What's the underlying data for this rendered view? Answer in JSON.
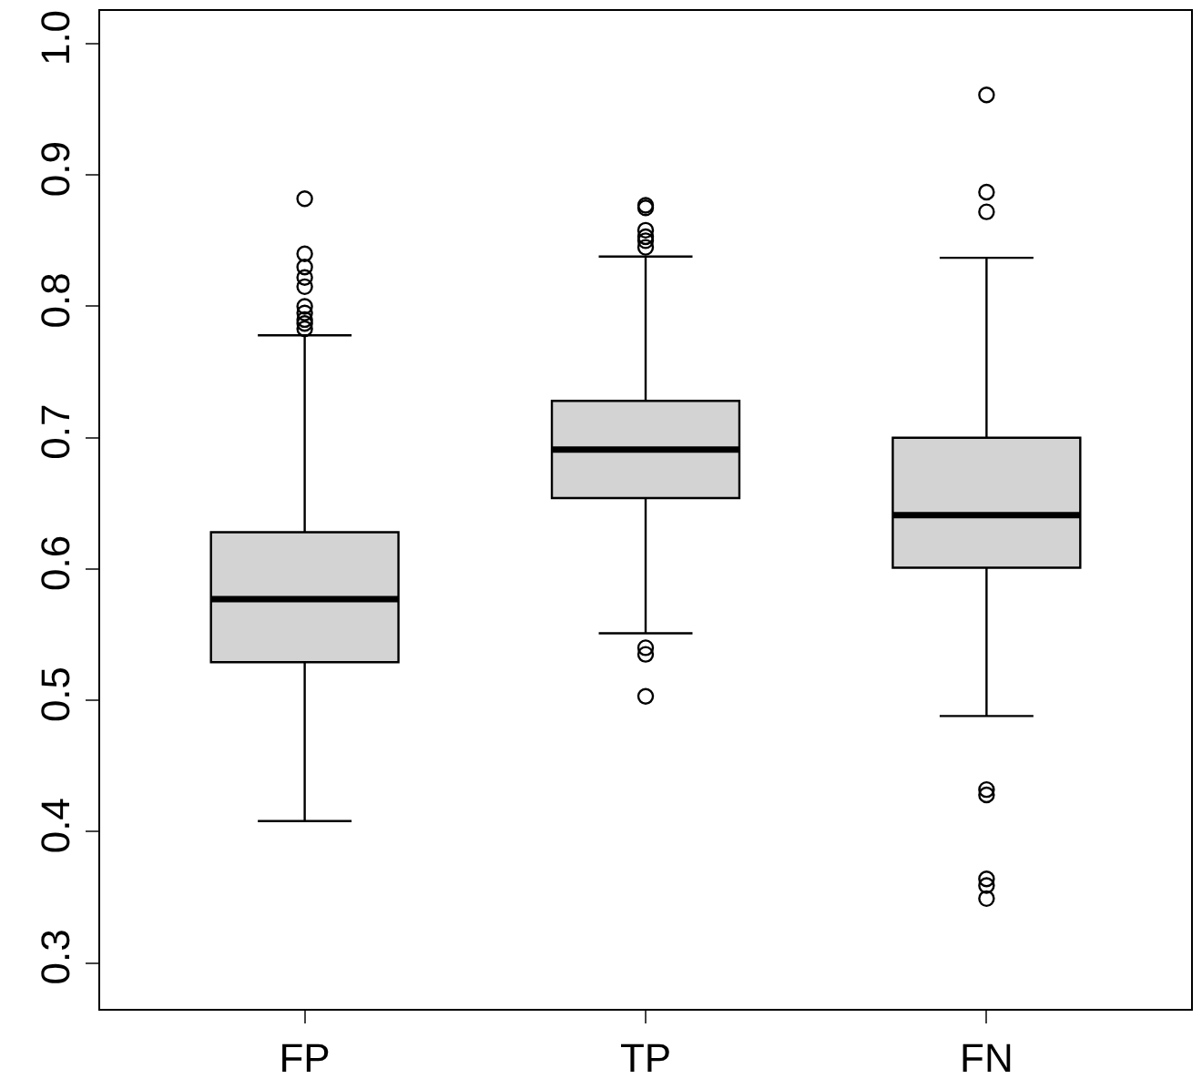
{
  "chart_data": {
    "type": "box",
    "categories": [
      "FP",
      "TP",
      "FN"
    ],
    "boxes": [
      {
        "low": 0.408,
        "q1": 0.529,
        "median": 0.577,
        "q3": 0.628,
        "high": 0.778,
        "outliers": [
          0.783,
          0.787,
          0.79,
          0.795,
          0.8,
          0.815,
          0.822,
          0.83,
          0.84,
          0.882
        ]
      },
      {
        "low": 0.551,
        "q1": 0.654,
        "median": 0.691,
        "q3": 0.728,
        "high": 0.838,
        "outliers": [
          0.845,
          0.85,
          0.853,
          0.858,
          0.875,
          0.877,
          0.54,
          0.535,
          0.503
        ]
      },
      {
        "low": 0.488,
        "q1": 0.601,
        "median": 0.641,
        "q3": 0.7,
        "high": 0.837,
        "outliers": [
          0.961,
          0.887,
          0.872,
          0.432,
          0.428,
          0.364,
          0.359,
          0.349
        ]
      }
    ],
    "color": "#d3d3d3",
    "ylim": [
      0.265,
      1.025
    ],
    "yticks": [
      0.3,
      0.4,
      0.5,
      0.6,
      0.7,
      0.8,
      0.9,
      {
        "value": 1,
        "label": "1.0"
      }
    ]
  }
}
